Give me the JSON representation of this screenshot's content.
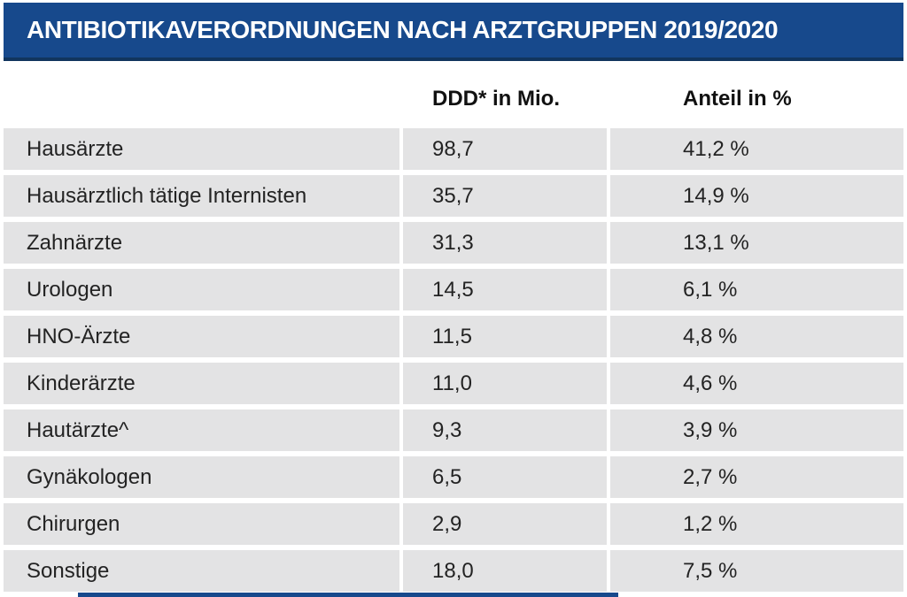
{
  "colors": {
    "header_bg": "#17498C",
    "header_edge": "#11355E",
    "row_bg": "#E3E3E4",
    "title_text": "#FFFFFF",
    "body_text": "#232323"
  },
  "columns": {
    "ddd": "DDD* in Mio.",
    "anteil": "Anteil in %"
  },
  "chart_data": {
    "type": "table",
    "title": "ANTIBIOTIKAVERORDNUNGEN NACH ARZTGRUPPEN 2019/2020",
    "columns": [
      "",
      "DDD* in Mio.",
      "Anteil in %"
    ],
    "rows": [
      {
        "group": "Hausärzte",
        "ddd_mio": "98,7",
        "anteil_pct": "41,2 %"
      },
      {
        "group": "Hausärztlich tätige Internisten",
        "ddd_mio": "35,7",
        "anteil_pct": "14,9 %"
      },
      {
        "group": "Zahnärzte",
        "ddd_mio": "31,3",
        "anteil_pct": "13,1 %"
      },
      {
        "group": "Urologen",
        "ddd_mio": "14,5",
        "anteil_pct": "6,1 %"
      },
      {
        "group": "HNO-Ärzte",
        "ddd_mio": "11,5",
        "anteil_pct": "4,8 %"
      },
      {
        "group": "Kinderärzte",
        "ddd_mio": "11,0",
        "anteil_pct": "4,6 %"
      },
      {
        "group": "Hautärzte^",
        "ddd_mio": "9,3",
        "anteil_pct": "3,9 %"
      },
      {
        "group": "Gynäkologen",
        "ddd_mio": "6,5",
        "anteil_pct": "2,7 %"
      },
      {
        "group": "Chirurgen",
        "ddd_mio": "2,9",
        "anteil_pct": "1,2 %"
      },
      {
        "group": "Sonstige",
        "ddd_mio": "18,0",
        "anteil_pct": "7,5 %"
      }
    ]
  }
}
